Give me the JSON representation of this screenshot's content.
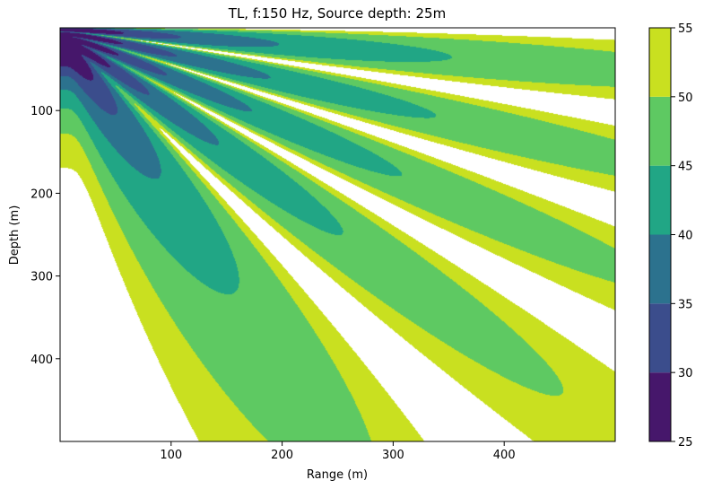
{
  "chart_data": {
    "type": "heatmap",
    "subtype": "filled-contour",
    "title": "TL, f:150 Hz, Source depth: 25m",
    "xlabel": "Range (m)",
    "ylabel": "Depth (m)",
    "xlim": [
      0,
      500
    ],
    "ylim": [
      500,
      0
    ],
    "x_ticks": [
      100,
      200,
      300,
      400
    ],
    "y_ticks": [
      100,
      200,
      300,
      400
    ],
    "source_depth_m": 25,
    "frequency_hz": 150,
    "colorbar": {
      "ticks": [
        25,
        30,
        35,
        40,
        45,
        50,
        55
      ],
      "levels": [
        {
          "range": [
            25,
            30
          ],
          "color": "#46176b"
        },
        {
          "range": [
            30,
            35
          ],
          "color": "#3b4d8c"
        },
        {
          "range": [
            35,
            40
          ],
          "color": "#2c728e"
        },
        {
          "range": [
            40,
            45
          ],
          "color": "#21a685"
        },
        {
          "range": [
            45,
            50
          ],
          "color": "#5ec962"
        },
        {
          "range": [
            50,
            55
          ],
          "color": "#c9e020"
        }
      ]
    },
    "colors": {
      "above_max": "#ffffff"
    }
  }
}
